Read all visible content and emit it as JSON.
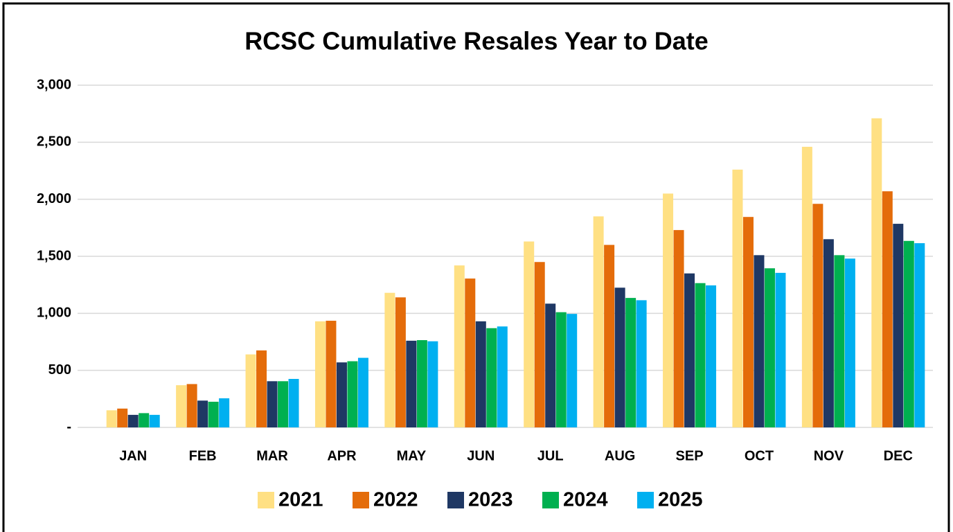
{
  "chart_data": {
    "type": "bar",
    "title": "RCSC Cumulative Resales Year to Date",
    "categories": [
      "JAN",
      "FEB",
      "MAR",
      "APR",
      "MAY",
      "JUN",
      "JUL",
      "AUG",
      "SEP",
      "OCT",
      "NOV",
      "DEC"
    ],
    "series": [
      {
        "name": "2021",
        "color": "#FFE083",
        "values": [
          150,
          370,
          640,
          930,
          1180,
          1420,
          1630,
          1850,
          2050,
          2260,
          2460,
          2710
        ]
      },
      {
        "name": "2022",
        "color": "#E46C0A",
        "values": [
          165,
          380,
          675,
          935,
          1140,
          1305,
          1450,
          1600,
          1730,
          1845,
          1960,
          2070
        ]
      },
      {
        "name": "2023",
        "color": "#1F3864",
        "values": [
          110,
          235,
          405,
          570,
          760,
          930,
          1085,
          1225,
          1350,
          1510,
          1650,
          1785
        ]
      },
      {
        "name": "2024",
        "color": "#00B050",
        "values": [
          125,
          225,
          405,
          580,
          765,
          870,
          1010,
          1135,
          1265,
          1395,
          1510,
          1635
        ]
      },
      {
        "name": "2025",
        "color": "#00B0F0",
        "values": [
          110,
          255,
          425,
          610,
          755,
          885,
          995,
          1115,
          1245,
          1355,
          1480,
          1615
        ]
      }
    ],
    "ylim": [
      0,
      3000
    ],
    "yticks": [
      {
        "value": 0,
        "label": "-"
      },
      {
        "value": 500,
        "label": "500"
      },
      {
        "value": 1000,
        "label": "1,000"
      },
      {
        "value": 1500,
        "label": "1,500"
      },
      {
        "value": 2000,
        "label": "2,000"
      },
      {
        "value": 2500,
        "label": "2,500"
      },
      {
        "value": 3000,
        "label": "3,000"
      }
    ],
    "grid": true,
    "legend": "bottom"
  }
}
